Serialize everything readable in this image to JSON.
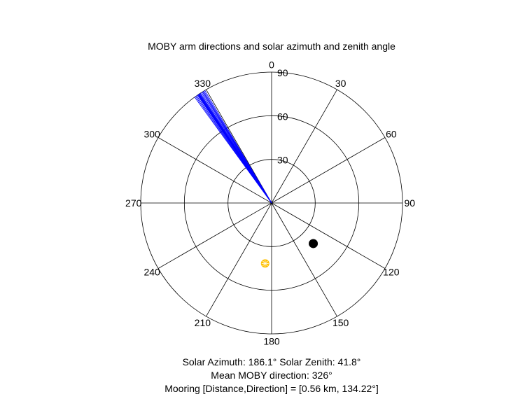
{
  "chart_data": {
    "type": "polar",
    "title": "MOBY arm directions and solar azimuth and zenith angle",
    "angle_ticks": [
      "0",
      "30",
      "60",
      "90",
      "120",
      "150",
      "180",
      "210",
      "240",
      "270",
      "300",
      "330"
    ],
    "radial_ticks": [
      "30",
      "60",
      "90"
    ],
    "radial_range": [
      0,
      90
    ],
    "angle_zero": "top",
    "angle_direction": "clockwise",
    "grid": true,
    "series": [
      {
        "kind": "arm-lines",
        "color": "#0000ff",
        "length": 90,
        "directions": [
          324,
          324.5,
          325,
          325.5,
          325.8,
          326,
          326.2,
          326.4,
          326.7,
          327,
          327.5,
          328,
          328.4,
          328.8,
          329.3
        ]
      },
      {
        "kind": "sun-marker",
        "color": "#ffc000",
        "direction": 186.1,
        "zenith": 41.8
      },
      {
        "kind": "mooring-marker",
        "color": "#000000",
        "direction": 134.22,
        "radius": 40
      }
    ],
    "annotations": {
      "solar_line": "Solar Azimuth: 186.1°    Solar Zenith: 41.8°",
      "moby_line": "Mean MOBY direction: 326°",
      "mooring_line": "Mooring [Distance,Direction] = [0.56 km, 134.22°]"
    }
  }
}
